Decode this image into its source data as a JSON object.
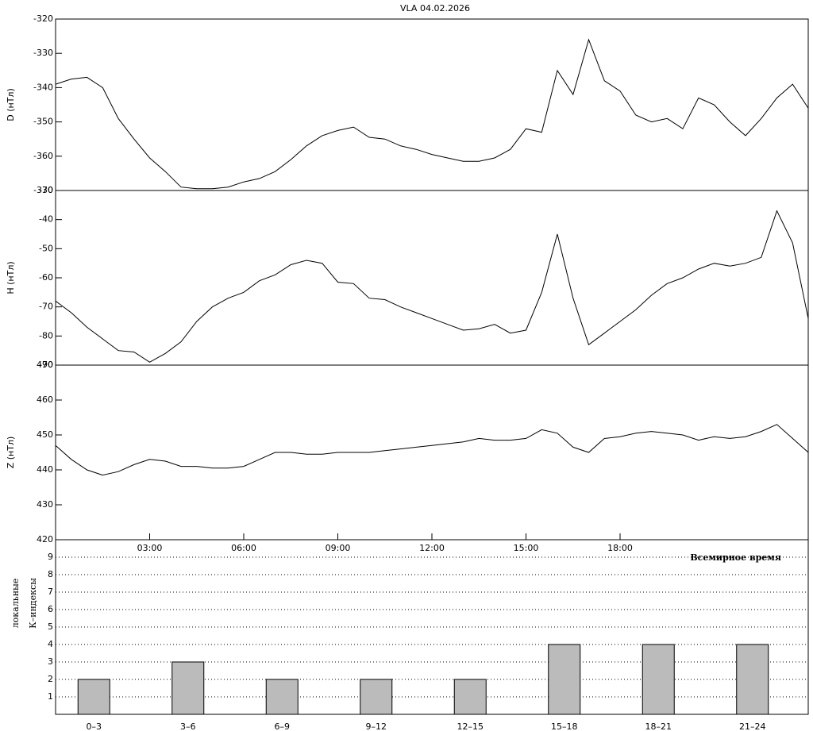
{
  "chart_data": [
    {
      "type": "line",
      "title": "VLA   04.02.2026",
      "ylabel": "D (нТл)",
      "x": [
        0,
        0.5,
        1,
        1.5,
        2,
        2.5,
        3,
        3.5,
        4,
        4.5,
        5,
        5.5,
        6,
        6.5,
        7,
        7.5,
        8,
        8.5,
        9,
        9.5,
        10,
        10.5,
        11,
        11.5,
        12,
        12.5,
        13,
        13.5,
        14,
        14.5,
        15,
        15.5,
        16,
        16.5,
        17,
        17.5,
        18,
        18.5,
        19,
        19.5,
        20,
        20.5,
        21,
        21.5,
        22,
        22.5,
        23,
        23.5,
        24
      ],
      "series": [
        {
          "color": "#000000",
          "values": [
            -339,
            -337.5,
            -337,
            -340,
            -349,
            -355,
            -360.5,
            -364.5,
            -369,
            -369.5,
            -369.5,
            -369,
            -367.5,
            -366.5,
            -364.5,
            -361,
            -357,
            -354,
            -352.5,
            -351.5,
            -354.5,
            -355,
            -357,
            -358,
            -359.5,
            -360.5,
            -361.5,
            -361.5,
            -360.5,
            -358,
            -352,
            -353,
            -335,
            -342,
            -326,
            -338,
            -341,
            -348,
            -350,
            -349,
            -352,
            -343,
            -345,
            -350,
            -354,
            -349,
            -343,
            -339,
            -346
          ]
        }
      ],
      "xlim": [
        0,
        24
      ],
      "ylim": [
        -370,
        -320
      ],
      "yticks": [
        -370,
        -360,
        -350,
        -340,
        -330,
        -320
      ]
    },
    {
      "type": "line",
      "ylabel": "H (нТл)",
      "x": [
        0,
        0.5,
        1,
        1.5,
        2,
        2.5,
        3,
        3.5,
        4,
        4.5,
        5,
        5.5,
        6,
        6.5,
        7,
        7.5,
        8,
        8.5,
        9,
        9.5,
        10,
        10.5,
        11,
        11.5,
        12,
        12.5,
        13,
        13.5,
        14,
        14.5,
        15,
        15.5,
        16,
        16.5,
        17,
        17.5,
        18,
        18.5,
        19,
        19.5,
        20,
        20.5,
        21,
        21.5,
        22,
        22.5,
        23,
        23.5,
        24
      ],
      "series": [
        {
          "color": "#000000",
          "values": [
            -68,
            -72,
            -77,
            -81,
            -85,
            -85.5,
            -89,
            -86,
            -82,
            -75,
            -70,
            -67,
            -65,
            -61,
            -59,
            -55.5,
            -54,
            -55,
            -61.5,
            -62,
            -67,
            -67.5,
            -70,
            -72,
            -74,
            -76,
            -78,
            -77.5,
            -76,
            -79,
            -78,
            -65,
            -45,
            -67,
            -83,
            -79,
            -75,
            -71,
            -66,
            -62,
            -60,
            -57,
            -55,
            -56,
            -55,
            -53,
            -37,
            -48,
            -74
          ]
        }
      ],
      "xlim": [
        0,
        24
      ],
      "ylim": [
        -90,
        -30
      ],
      "yticks": [
        -90,
        -80,
        -70,
        -60,
        -50,
        -40,
        -30
      ]
    },
    {
      "type": "line",
      "ylabel": "Z (нТл)",
      "xlabel": "Всемирное время",
      "x": [
        0,
        0.5,
        1,
        1.5,
        2,
        2.5,
        3,
        3.5,
        4,
        4.5,
        5,
        5.5,
        6,
        6.5,
        7,
        7.5,
        8,
        8.5,
        9,
        9.5,
        10,
        10.5,
        11,
        11.5,
        12,
        12.5,
        13,
        13.5,
        14,
        14.5,
        15,
        15.5,
        16,
        16.5,
        17,
        17.5,
        18,
        18.5,
        19,
        19.5,
        20,
        20.5,
        21,
        21.5,
        22,
        22.5,
        23,
        23.5,
        24
      ],
      "series": [
        {
          "color": "#000000",
          "values": [
            447,
            443,
            440,
            438.5,
            439.5,
            441.5,
            443,
            442.5,
            441,
            441,
            440.5,
            440.5,
            441,
            443,
            445,
            445,
            444.5,
            444.5,
            445,
            445,
            445,
            445.5,
            446,
            446.5,
            447,
            447.5,
            448,
            449,
            448.5,
            448.5,
            449,
            451.5,
            450.5,
            446.5,
            445,
            449,
            449.5,
            450.5,
            451,
            450.5,
            450,
            448.5,
            449.5,
            449,
            449.5,
            451,
            453,
            449,
            445
          ]
        }
      ],
      "xlim": [
        0,
        24
      ],
      "ylim": [
        420,
        470
      ],
      "yticks": [
        420,
        430,
        440,
        450,
        460,
        470
      ],
      "xticks": [
        {
          "value": 3,
          "label": "03:00"
        },
        {
          "value": 6,
          "label": "06:00"
        },
        {
          "value": 9,
          "label": "09:00"
        },
        {
          "value": 12,
          "label": "12:00"
        },
        {
          "value": 15,
          "label": "15:00"
        },
        {
          "value": 18,
          "label": "18:00"
        }
      ]
    },
    {
      "type": "bar",
      "ylabel": [
        "локальные",
        "К–индексы"
      ],
      "categories": [
        "0–3",
        "3–6",
        "6–9",
        "9–12",
        "12–15",
        "15–18",
        "18–21",
        "21–24"
      ],
      "values": [
        2,
        3,
        2,
        2,
        2,
        4,
        4,
        4
      ],
      "color": "#bbbbbb",
      "ylim": [
        0,
        10
      ],
      "yticks": [
        1,
        2,
        3,
        4,
        5,
        6,
        7,
        8,
        9
      ],
      "grid": true
    }
  ]
}
